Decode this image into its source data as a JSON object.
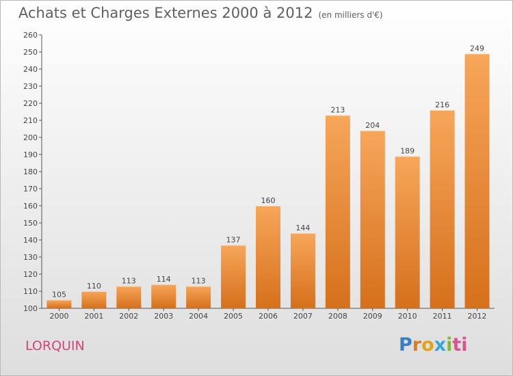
{
  "header": {
    "title": "Achats et Charges Externes 2000 à 2012",
    "subtitle": "(en milliers d'€)"
  },
  "commune": "LORQUIN",
  "logo": {
    "letters": [
      "P",
      "r",
      "o",
      "x",
      "i",
      "ti"
    ]
  },
  "colors": {
    "bar_light": "#f7a65a",
    "bar_dark": "#d5701c",
    "commune": "#d0457a"
  },
  "chart_data": {
    "type": "bar",
    "title": "Achats et Charges Externes 2000 à 2012",
    "subtitle": "(en milliers d'€)",
    "categories": [
      "2000",
      "2001",
      "2002",
      "2003",
      "2004",
      "2005",
      "2006",
      "2007",
      "2008",
      "2009",
      "2010",
      "2011",
      "2012"
    ],
    "values": [
      105,
      110,
      113,
      114,
      113,
      137,
      160,
      144,
      213,
      204,
      189,
      216,
      249
    ],
    "ylim": [
      100,
      260
    ],
    "yticks": [
      100,
      110,
      120,
      130,
      140,
      150,
      160,
      170,
      180,
      190,
      200,
      210,
      220,
      230,
      240,
      250,
      260
    ],
    "grid": false,
    "xlabel": "",
    "ylabel": ""
  }
}
